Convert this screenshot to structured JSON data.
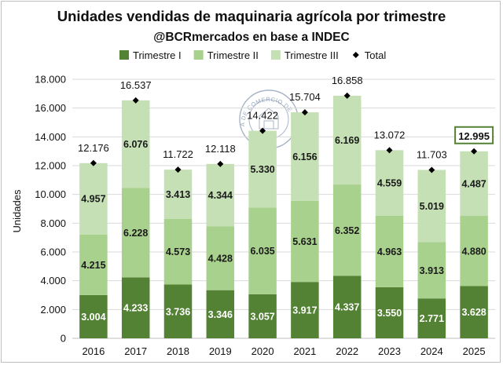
{
  "chart_data": {
    "type": "bar",
    "stacked": true,
    "title": "Unidades vendidas de maquinaria agrícola por trimestre",
    "subtitle": "@BCRmercados en base a INDEC",
    "ylabel": "Unidades",
    "xlabel": "",
    "ylim": [
      0,
      18000
    ],
    "yticks": [
      0,
      2000,
      4000,
      6000,
      8000,
      10000,
      12000,
      14000,
      16000,
      18000
    ],
    "ytick_labels": [
      "0",
      "2.000",
      "4.000",
      "6.000",
      "8.000",
      "10.000",
      "12.000",
      "14.000",
      "16.000",
      "18.000"
    ],
    "grid": true,
    "legend_position": "top",
    "categories": [
      "2016",
      "2017",
      "2018",
      "2019",
      "2020",
      "2021",
      "2022",
      "2023",
      "2024",
      "2025"
    ],
    "series": [
      {
        "name": "Trimestre I",
        "color": "#548235",
        "text_color": "#ffffff",
        "values": [
          3004,
          4233,
          3736,
          3346,
          3057,
          3917,
          4337,
          3550,
          2771,
          3628
        ],
        "labels": [
          "3.004",
          "4.233",
          "3.736",
          "3.346",
          "3.057",
          "3.917",
          "4.337",
          "3.550",
          "2.771",
          "3.628"
        ]
      },
      {
        "name": "Trimestre II",
        "color": "#a9d18e",
        "text_color": "#1a1a1a",
        "values": [
          4215,
          6228,
          4573,
          4428,
          6035,
          5631,
          6352,
          4963,
          3913,
          4880
        ],
        "labels": [
          "4.215",
          "6.228",
          "4.573",
          "4.428",
          "6.035",
          "5.631",
          "6.352",
          "4.963",
          "3.913",
          "4.880"
        ]
      },
      {
        "name": "Trimestre III",
        "color": "#c5e0b4",
        "text_color": "#1a1a1a",
        "values": [
          4957,
          6076,
          3413,
          4344,
          5330,
          6156,
          6169,
          4559,
          5019,
          4487
        ],
        "labels": [
          "4.957",
          "6.076",
          "3.413",
          "4.344",
          "5.330",
          "6.156",
          "6.169",
          "4.559",
          "5.019",
          "4.487"
        ]
      }
    ],
    "total": {
      "name": "Total",
      "marker": "diamond",
      "color": "#000000",
      "values": [
        12176,
        16537,
        11722,
        12118,
        14422,
        15704,
        16858,
        13072,
        11703,
        12995
      ],
      "labels": [
        "12.176",
        "16.537",
        "11.722",
        "12.118",
        "14.422",
        "15.704",
        "16.858",
        "13.072",
        "11.703",
        "12.995"
      ],
      "highlighted_category": "2025",
      "highlight_color": "#548235"
    },
    "watermark": {
      "text": "BOLSA DE COMERCIO DE ROSARIO",
      "color": "#8a9bb5"
    }
  }
}
